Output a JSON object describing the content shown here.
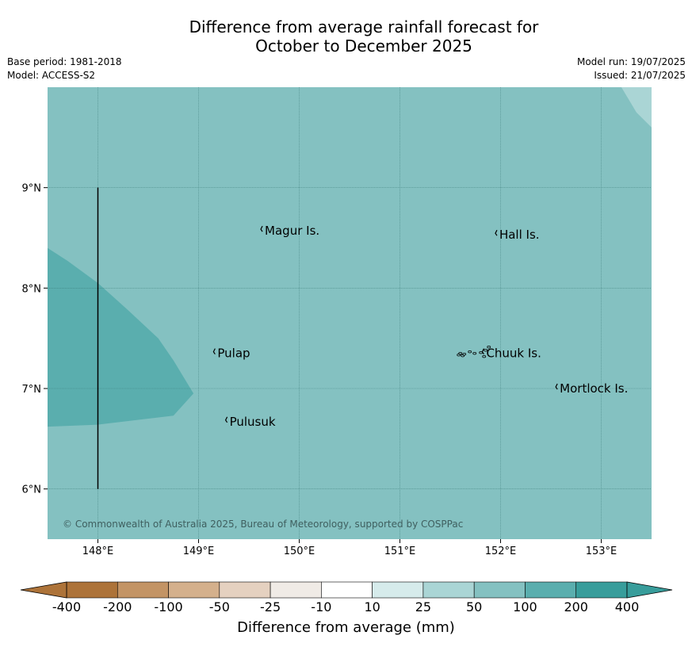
{
  "title": {
    "line1": "Difference from average rainfall forecast for",
    "line2": "October to December 2025"
  },
  "meta_left": {
    "base_period": "Base period: 1981-2018",
    "model": "Model: ACCESS-S2"
  },
  "meta_right": {
    "model_run": "Model run: 19/07/2025",
    "issued": "Issued: 21/07/2025"
  },
  "map": {
    "extent": {
      "lon": [
        147.5,
        153.5
      ],
      "lat": [
        5.5,
        10.0
      ]
    },
    "lat_ticks": [
      {
        "value": 6,
        "label": "6°N"
      },
      {
        "value": 7,
        "label": "7°N"
      },
      {
        "value": 8,
        "label": "8°N"
      },
      {
        "value": 9,
        "label": "9°N"
      }
    ],
    "lon_ticks": [
      {
        "value": 148,
        "label": "148°E"
      },
      {
        "value": 149,
        "label": "149°E"
      },
      {
        "value": 150,
        "label": "150°E"
      },
      {
        "value": 151,
        "label": "151°E"
      },
      {
        "value": 152,
        "label": "152°E"
      },
      {
        "value": 153,
        "label": "153°E"
      }
    ],
    "background_category": "50 to 100",
    "regions": [
      {
        "category": "100 to 200",
        "color": "#5aaeae",
        "points": [
          [
            147.5,
            8.4
          ],
          [
            147.7,
            8.27
          ],
          [
            148.0,
            8.05
          ],
          [
            148.3,
            7.78
          ],
          [
            148.6,
            7.5
          ],
          [
            148.75,
            7.28
          ],
          [
            148.95,
            6.95
          ],
          [
            148.75,
            6.73
          ],
          [
            148.0,
            6.64
          ],
          [
            147.5,
            6.62
          ]
        ]
      },
      {
        "category": "25 to 50",
        "color": "#aad5d5",
        "points": [
          [
            153.2,
            10.0
          ],
          [
            153.35,
            9.75
          ],
          [
            153.5,
            9.6
          ],
          [
            153.5,
            10.0
          ]
        ]
      }
    ],
    "meridian_line": {
      "lon": 148.0,
      "lat": [
        6.0,
        9.0
      ]
    },
    "places": [
      {
        "name": "Magur Is.",
        "lon": 149.65,
        "lat": 8.57
      },
      {
        "name": "Hall Is.",
        "lon": 151.98,
        "lat": 8.53
      },
      {
        "name": "Pulap",
        "lon": 149.18,
        "lat": 7.35
      },
      {
        "name": "Chuuk Is.",
        "lon": 151.85,
        "lat": 7.35
      },
      {
        "name": "Mortlock Is.",
        "lon": 152.58,
        "lat": 7.0
      },
      {
        "name": "Pulusuk",
        "lon": 149.3,
        "lat": 6.67
      }
    ],
    "copyright": "© Commonwealth of Australia 2025, Bureau of Meteorology, supported by COSPPac"
  },
  "legend": {
    "title": "Difference from average (mm)",
    "labels": [
      "-400",
      "-200",
      "-100",
      "-50",
      "-25",
      "-10",
      "10",
      "25",
      "50",
      "100",
      "200",
      "400"
    ],
    "colors": [
      "#ad7339",
      "#c39465",
      "#d4b08c",
      "#e5d1c0",
      "#f0ebe6",
      "#ffffff",
      "#d6ebeb",
      "#aad5d5",
      "#84c1c1",
      "#5aaeae",
      "#389d9b"
    ],
    "under_color": "#ad7339",
    "over_color": "#389d9b"
  },
  "colors": {
    "gridline": "#2d6d6a",
    "text_copyright": "#3f5f5f"
  }
}
